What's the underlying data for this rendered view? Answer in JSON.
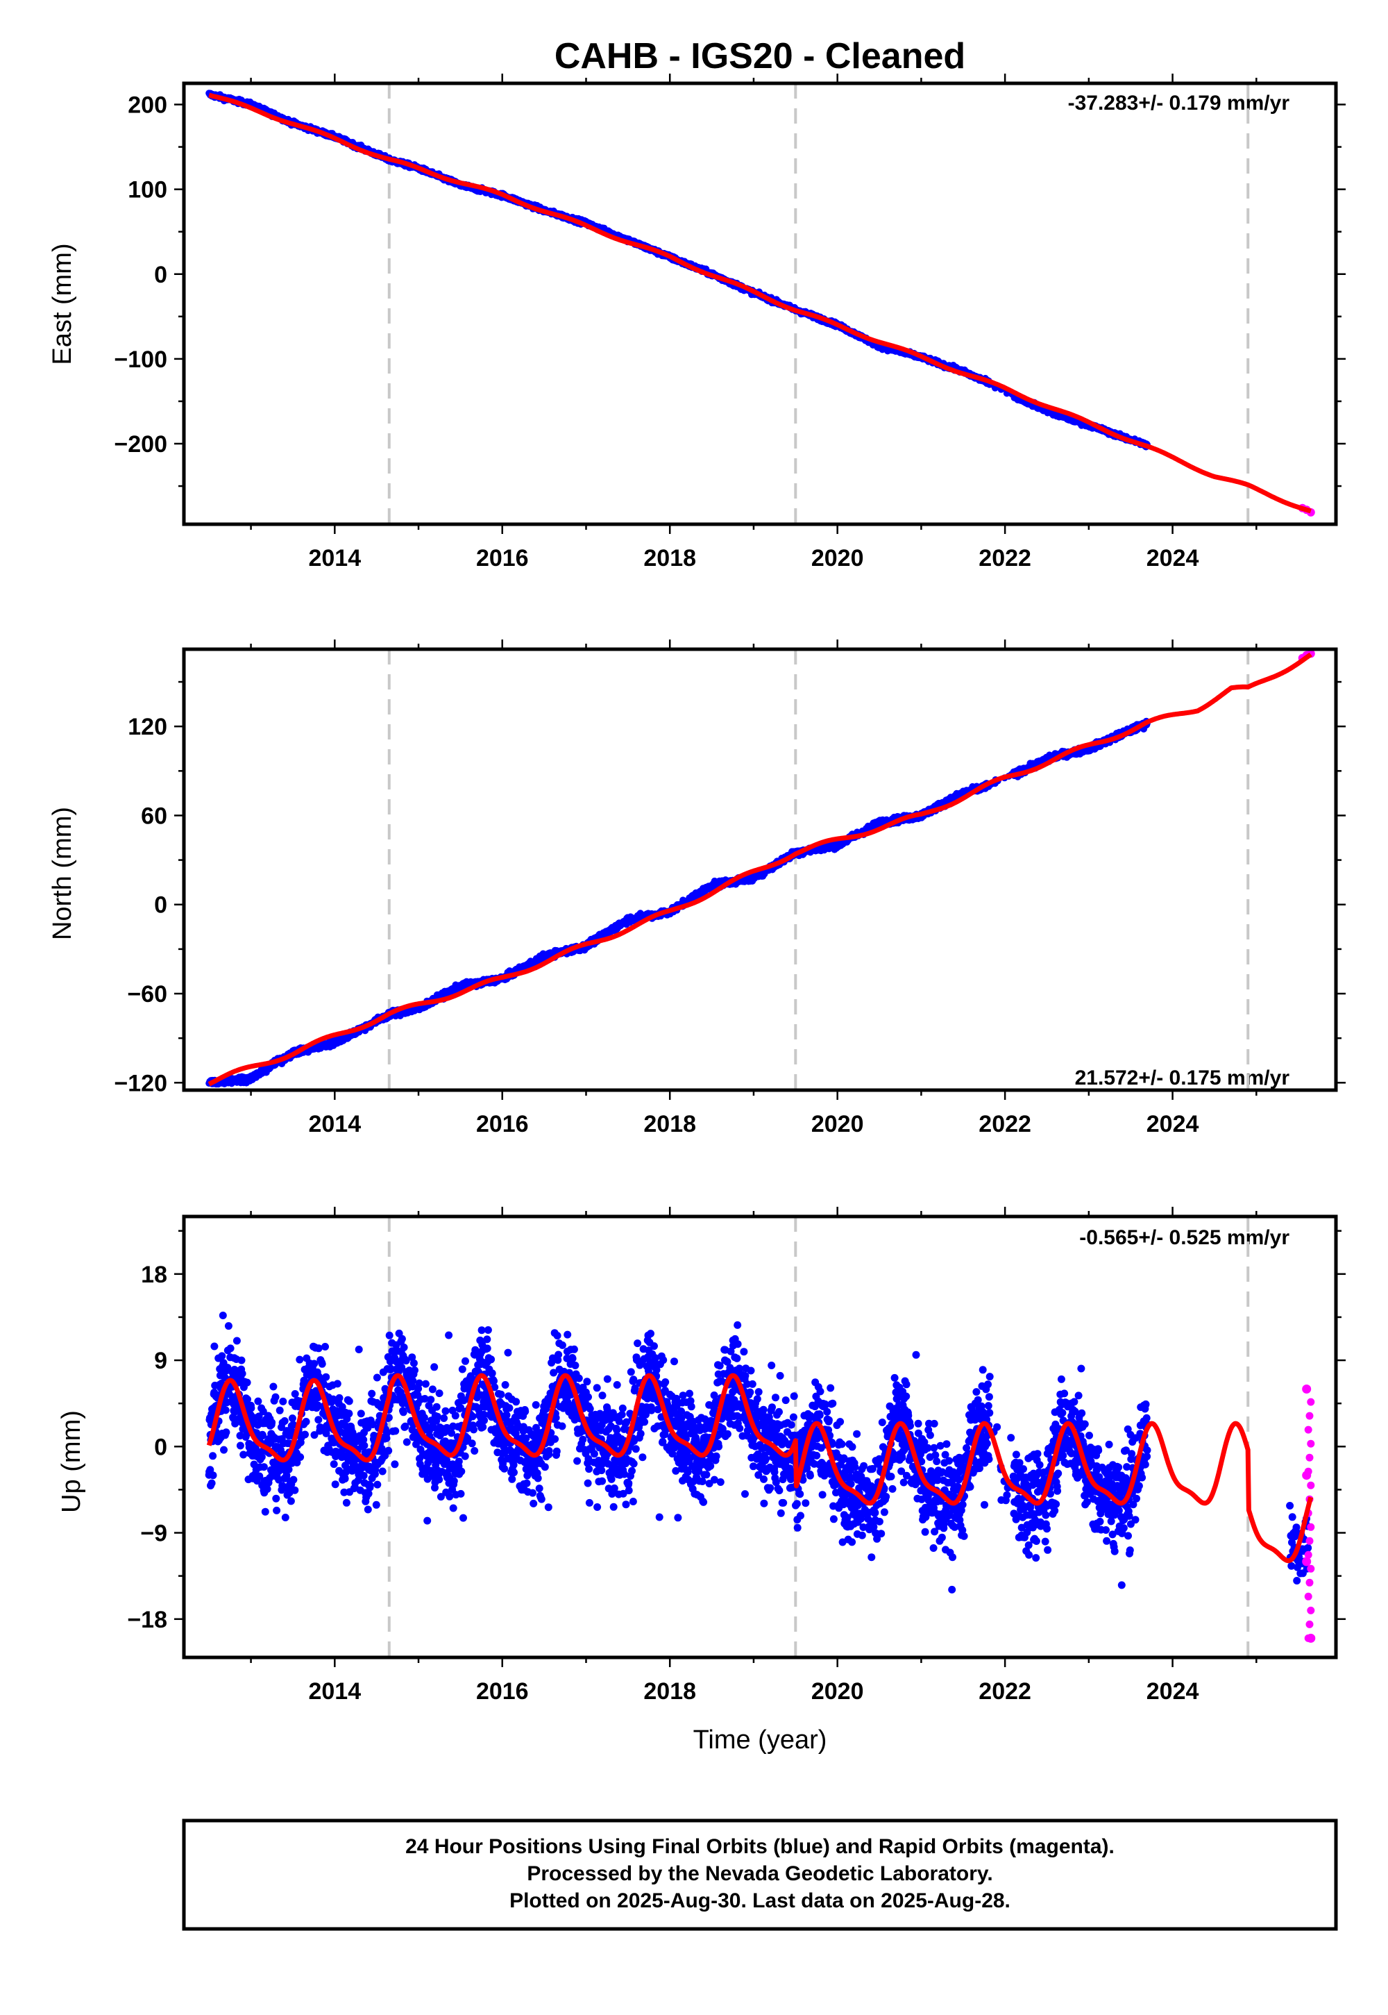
{
  "chart_data": {
    "title": "CAHB  - IGS20 - Cleaned",
    "xlabel": "Time (year)",
    "xlim": [
      2012.2,
      2025.95
    ],
    "xticks": [
      2014,
      2016,
      2018,
      2020,
      2022,
      2024
    ],
    "event_lines": [
      2014.65,
      2019.5,
      2024.9
    ],
    "colors": {
      "final": "#0000ff",
      "rapid": "#ff00ff",
      "model": "#ff0000",
      "event": "#c8c8c8"
    },
    "panels": [
      {
        "type": "scatter",
        "ylabel": "East (mm)",
        "ylim": [
          -295,
          225
        ],
        "yticks": [
          200,
          100,
          0,
          -100,
          -200
        ],
        "rate_label": "-37.283+/- 0.179 mm/yr",
        "rate_position": "top-right",
        "series": [
          {
            "name": "Final Orbits (blue)",
            "x": [
              2012.5,
              2013.0,
              2013.5,
              2014.0,
              2014.65,
              2015.0,
              2015.5,
              2016.0,
              2016.5,
              2017.0,
              2017.5,
              2018.0,
              2018.5,
              2019.0,
              2019.5,
              2020.0,
              2020.5,
              2021.0,
              2021.5,
              2021.8,
              2022.2,
              2022.6,
              2023.0,
              2023.4,
              2023.7
            ],
            "y": [
              212,
              200,
              178,
              162,
              135,
              125,
              105,
              93,
              75,
              60,
              40,
              20,
              0,
              -22,
              -42,
              -60,
              -85,
              -98,
              -115,
              -128,
              -148,
              -165,
              -178,
              -192,
              -202
            ]
          },
          {
            "name": "Rapid Orbits (magenta)",
            "x": [
              2025.55,
              2025.6,
              2025.65
            ],
            "y": [
              -276,
              -278,
              -281
            ]
          }
        ],
        "model": {
          "x": [
            2012.5,
            2013.5,
            2014.65,
            2016.0,
            2018.0,
            2019.5,
            2021.0,
            2022.0,
            2023.7,
            2024.5,
            2024.9,
            2025.65
          ],
          "y": [
            212,
            178,
            135,
            93,
            20,
            -42,
            -98,
            -135,
            -204,
            -238,
            -250,
            -280
          ]
        }
      },
      {
        "type": "scatter",
        "ylabel": "North (mm)",
        "ylim": [
          -125,
          172
        ],
        "yticks": [
          120,
          60,
          0,
          -60,
          -120
        ],
        "rate_label": "21.572+/- 0.175 mm/yr",
        "rate_position": "bottom-right",
        "series": [
          {
            "name": "Final Orbits (blue)",
            "x": [
              2012.5,
              2013.0,
              2013.5,
              2014.0,
              2014.65,
              2015.0,
              2015.5,
              2016.0,
              2016.5,
              2017.0,
              2017.5,
              2018.0,
              2018.5,
              2019.0,
              2019.5,
              2020.0,
              2020.5,
              2021.0,
              2021.5,
              2021.8,
              2022.2,
              2022.6,
              2023.0,
              2023.4,
              2023.7
            ],
            "y": [
              -120,
              -117,
              -100,
              -93,
              -74,
              -70,
              -55,
              -50,
              -35,
              -28,
              -10,
              -5,
              13,
              18,
              35,
              40,
              55,
              60,
              75,
              80,
              90,
              100,
              105,
              115,
              122
            ]
          },
          {
            "name": "Rapid Orbits (magenta)",
            "x": [
              2025.55,
              2025.6,
              2025.65
            ],
            "y": [
              166,
              168,
              169
            ]
          }
        ],
        "model": {
          "x": [
            2012.5,
            2013.5,
            2014.65,
            2016.0,
            2018.0,
            2019.5,
            2021.0,
            2022.0,
            2023.7,
            2024.3,
            2024.7,
            2024.9,
            2025.65
          ],
          "y": [
            -120,
            -100,
            -74,
            -50,
            -5,
            35,
            60,
            85,
            122,
            132,
            145,
            145,
            168
          ]
        }
      },
      {
        "type": "scatter",
        "ylabel": "Up (mm)",
        "ylim": [
          -22,
          24
        ],
        "yticks": [
          18,
          9,
          0,
          -9,
          -18
        ],
        "rate_label": "-0.565+/- 0.525 mm/yr",
        "rate_position": "top-right",
        "series": [
          {
            "name": "Final Orbits (blue)",
            "x": [
              2012.5,
              2012.8,
              2013.1,
              2013.4,
              2013.7,
              2014.0,
              2014.3,
              2014.8,
              2015.1,
              2015.4,
              2015.8,
              2016.1,
              2016.4,
              2016.8,
              2017.1,
              2017.4,
              2017.8,
              2018.1,
              2018.4,
              2018.8,
              2019.1,
              2019.4,
              2019.8,
              2020.1,
              2020.4,
              2020.8,
              2021.1,
              2021.4,
              2021.8,
              2022.2,
              2022.5,
              2022.8,
              2023.1,
              2023.4,
              2023.7,
              2025.5
            ],
            "y": [
              2,
              6,
              -3,
              3,
              5,
              -2,
              2,
              7,
              1,
              3,
              6,
              0,
              3,
              6,
              -1,
              3,
              5,
              -2,
              3,
              5,
              -3,
              0,
              1,
              -5,
              -1,
              1,
              -5,
              -2,
              1,
              -6,
              -2,
              0,
              -7,
              -3,
              -1,
              -10
            ]
          },
          {
            "name": "Rapid Orbits (magenta)",
            "x": [
              2025.6,
              2025.6,
              2025.6,
              2025.65
            ],
            "y": [
              6,
              -3,
              -12,
              -20
            ]
          }
        ],
        "model": {
          "amplitude": 3.8,
          "period_years": 1.0,
          "phase_peak_year": 2012.78,
          "segments": [
            {
              "x0": 2012.5,
              "x1": 2014.65,
              "offset": 2.0
            },
            {
              "x0": 2014.65,
              "x1": 2019.5,
              "offset": 2.5
            },
            {
              "x0": 2019.5,
              "x1": 2024.9,
              "offset": -2.5
            },
            {
              "x0": 2024.9,
              "x1": 2025.65,
              "offset": -8.5
            }
          ]
        }
      }
    ]
  },
  "note": {
    "lines": [
      "24 Hour Positions Using Final Orbits (blue) and Rapid Orbits (magenta).",
      "Processed by the Nevada Geodetic Laboratory.",
      "Plotted on 2025-Aug-30. Last data on 2025-Aug-28."
    ]
  }
}
